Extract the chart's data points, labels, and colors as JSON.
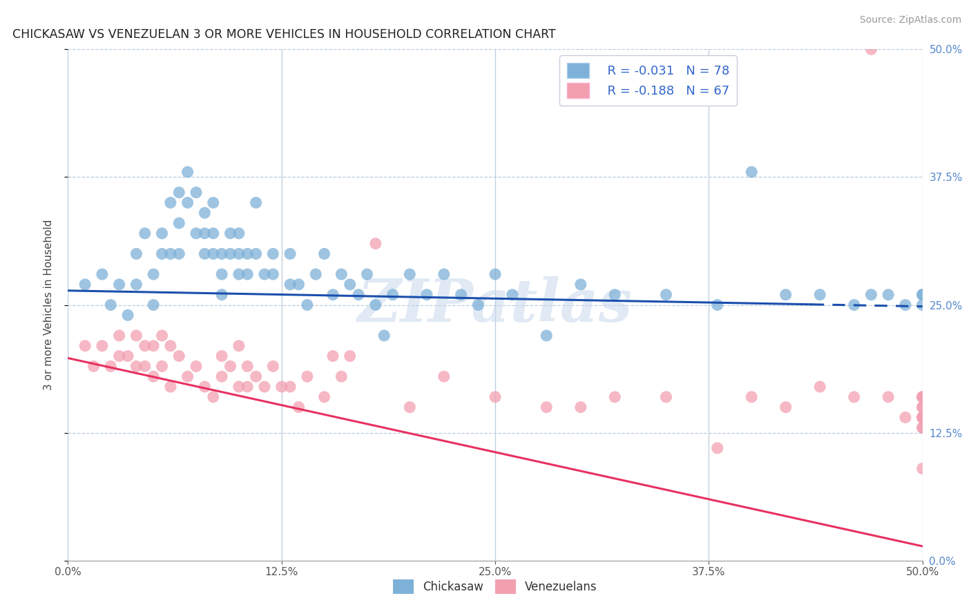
{
  "title": "CHICKASAW VS VENEZUELAN 3 OR MORE VEHICLES IN HOUSEHOLD CORRELATION CHART",
  "source": "Source: ZipAtlas.com",
  "ylabel": "3 or more Vehicles in Household",
  "ytick_vals": [
    0.0,
    0.125,
    0.25,
    0.375,
    0.5
  ],
  "xtick_vals": [
    0.0,
    0.125,
    0.25,
    0.375,
    0.5
  ],
  "xlim": [
    0.0,
    0.5
  ],
  "ylim": [
    0.0,
    0.5
  ],
  "legend_r_blue": "R = -0.031",
  "legend_n_blue": "N = 78",
  "legend_r_pink": "R = -0.188",
  "legend_n_pink": "N = 67",
  "blue_color": "#7EB1D8",
  "pink_color": "#F2A0B0",
  "blue_line_color": "#1A4FAD",
  "pink_line_color": "#E83060",
  "watermark_text": "ZIPatlas",
  "blue_intercept": 0.264,
  "blue_slope": -0.031,
  "pink_intercept": 0.198,
  "pink_slope": -0.368,
  "chickasaw_x": [
    0.01,
    0.02,
    0.025,
    0.03,
    0.035,
    0.04,
    0.04,
    0.045,
    0.05,
    0.05,
    0.055,
    0.055,
    0.06,
    0.06,
    0.065,
    0.065,
    0.065,
    0.07,
    0.07,
    0.075,
    0.075,
    0.08,
    0.08,
    0.08,
    0.085,
    0.085,
    0.085,
    0.09,
    0.09,
    0.09,
    0.095,
    0.095,
    0.1,
    0.1,
    0.1,
    0.105,
    0.105,
    0.11,
    0.11,
    0.115,
    0.12,
    0.12,
    0.13,
    0.13,
    0.135,
    0.14,
    0.145,
    0.15,
    0.155,
    0.16,
    0.165,
    0.17,
    0.175,
    0.18,
    0.185,
    0.19,
    0.2,
    0.21,
    0.22,
    0.23,
    0.24,
    0.25,
    0.26,
    0.28,
    0.3,
    0.32,
    0.35,
    0.38,
    0.4,
    0.42,
    0.44,
    0.46,
    0.47,
    0.48,
    0.49,
    0.5,
    0.5,
    0.5
  ],
  "chickasaw_y": [
    0.27,
    0.28,
    0.25,
    0.27,
    0.24,
    0.3,
    0.27,
    0.32,
    0.28,
    0.25,
    0.32,
    0.3,
    0.35,
    0.3,
    0.36,
    0.33,
    0.3,
    0.38,
    0.35,
    0.36,
    0.32,
    0.34,
    0.32,
    0.3,
    0.35,
    0.32,
    0.3,
    0.3,
    0.28,
    0.26,
    0.32,
    0.3,
    0.32,
    0.3,
    0.28,
    0.3,
    0.28,
    0.35,
    0.3,
    0.28,
    0.3,
    0.28,
    0.3,
    0.27,
    0.27,
    0.25,
    0.28,
    0.3,
    0.26,
    0.28,
    0.27,
    0.26,
    0.28,
    0.25,
    0.22,
    0.26,
    0.28,
    0.26,
    0.28,
    0.26,
    0.25,
    0.28,
    0.26,
    0.22,
    0.27,
    0.26,
    0.26,
    0.25,
    0.38,
    0.26,
    0.26,
    0.25,
    0.26,
    0.26,
    0.25,
    0.26,
    0.26,
    0.25
  ],
  "venezuelan_x": [
    0.01,
    0.015,
    0.02,
    0.025,
    0.03,
    0.03,
    0.035,
    0.04,
    0.04,
    0.045,
    0.045,
    0.05,
    0.05,
    0.055,
    0.055,
    0.06,
    0.06,
    0.065,
    0.07,
    0.075,
    0.08,
    0.085,
    0.09,
    0.09,
    0.095,
    0.1,
    0.1,
    0.105,
    0.105,
    0.11,
    0.115,
    0.12,
    0.125,
    0.13,
    0.135,
    0.14,
    0.15,
    0.155,
    0.16,
    0.165,
    0.18,
    0.2,
    0.22,
    0.25,
    0.28,
    0.3,
    0.32,
    0.35,
    0.38,
    0.4,
    0.42,
    0.44,
    0.46,
    0.47,
    0.48,
    0.49,
    0.5,
    0.5,
    0.5,
    0.5,
    0.5,
    0.5,
    0.5,
    0.5,
    0.5,
    0.5,
    0.5
  ],
  "venezuelan_y": [
    0.21,
    0.19,
    0.21,
    0.19,
    0.22,
    0.2,
    0.2,
    0.22,
    0.19,
    0.21,
    0.19,
    0.21,
    0.18,
    0.22,
    0.19,
    0.21,
    0.17,
    0.2,
    0.18,
    0.19,
    0.17,
    0.16,
    0.2,
    0.18,
    0.19,
    0.21,
    0.17,
    0.19,
    0.17,
    0.18,
    0.17,
    0.19,
    0.17,
    0.17,
    0.15,
    0.18,
    0.16,
    0.2,
    0.18,
    0.2,
    0.31,
    0.15,
    0.18,
    0.16,
    0.15,
    0.15,
    0.16,
    0.16,
    0.11,
    0.16,
    0.15,
    0.17,
    0.16,
    0.5,
    0.16,
    0.14,
    0.16,
    0.16,
    0.15,
    0.14,
    0.14,
    0.13,
    0.09,
    0.16,
    0.15,
    0.14,
    0.13
  ]
}
